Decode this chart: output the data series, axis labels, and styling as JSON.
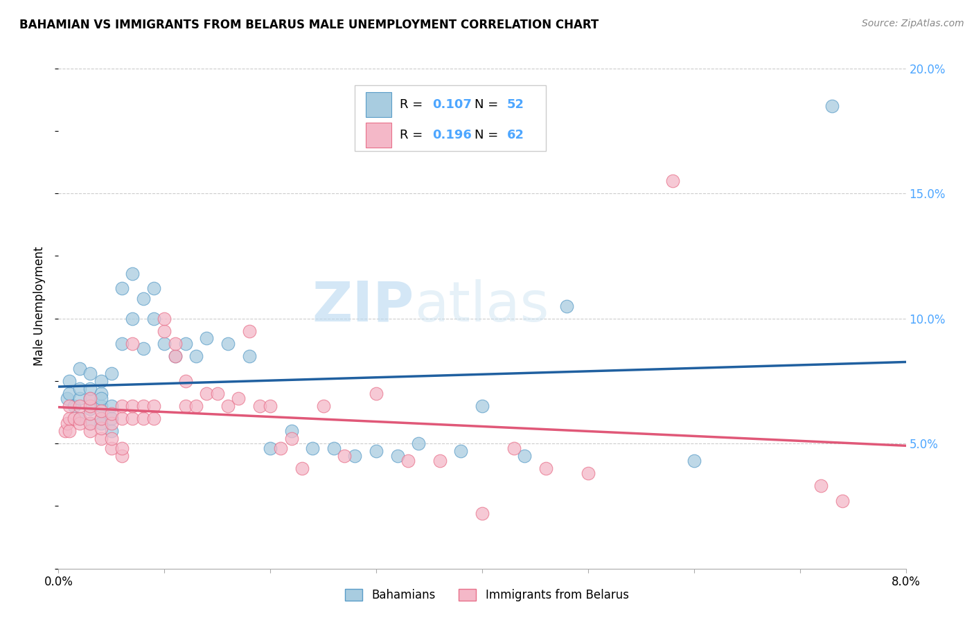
{
  "title": "BAHAMIAN VS IMMIGRANTS FROM BELARUS MALE UNEMPLOYMENT CORRELATION CHART",
  "source": "Source: ZipAtlas.com",
  "ylabel": "Male Unemployment",
  "watermark_zip": "ZIP",
  "watermark_atlas": "atlas",
  "color_blue": "#a8cce0",
  "color_pink": "#f4b8c8",
  "color_blue_edge": "#5a9dc8",
  "color_pink_edge": "#e8708a",
  "color_blue_line": "#2060a0",
  "color_pink_line": "#e05878",
  "xlim": [
    0.0,
    0.08
  ],
  "ylim": [
    0.0,
    0.21
  ],
  "yticks": [
    0.05,
    0.1,
    0.15,
    0.2
  ],
  "ytick_labels": [
    "5.0%",
    "10.0%",
    "15.0%",
    "20.0%"
  ],
  "ytick_color": "#4da6ff",
  "grid_color": "#cccccc",
  "legend_R1": "0.107",
  "legend_N1": "52",
  "legend_R2": "0.196",
  "legend_N2": "62",
  "bahamians_x": [
    0.0008,
    0.001,
    0.001,
    0.0015,
    0.002,
    0.002,
    0.002,
    0.002,
    0.003,
    0.003,
    0.003,
    0.003,
    0.003,
    0.004,
    0.004,
    0.004,
    0.004,
    0.004,
    0.004,
    0.005,
    0.005,
    0.005,
    0.005,
    0.006,
    0.006,
    0.007,
    0.007,
    0.008,
    0.008,
    0.009,
    0.009,
    0.01,
    0.011,
    0.012,
    0.013,
    0.014,
    0.016,
    0.018,
    0.02,
    0.022,
    0.024,
    0.026,
    0.028,
    0.03,
    0.032,
    0.034,
    0.038,
    0.04,
    0.044,
    0.048,
    0.06,
    0.073
  ],
  "bahamians_y": [
    0.068,
    0.07,
    0.075,
    0.065,
    0.068,
    0.072,
    0.08,
    0.06,
    0.064,
    0.068,
    0.072,
    0.078,
    0.058,
    0.06,
    0.065,
    0.07,
    0.075,
    0.058,
    0.068,
    0.06,
    0.065,
    0.055,
    0.078,
    0.09,
    0.112,
    0.1,
    0.118,
    0.088,
    0.108,
    0.1,
    0.112,
    0.09,
    0.085,
    0.09,
    0.085,
    0.092,
    0.09,
    0.085,
    0.048,
    0.055,
    0.048,
    0.048,
    0.045,
    0.047,
    0.045,
    0.05,
    0.047,
    0.065,
    0.045,
    0.105,
    0.043,
    0.185
  ],
  "belarus_x": [
    0.0006,
    0.0008,
    0.001,
    0.001,
    0.001,
    0.0015,
    0.002,
    0.002,
    0.002,
    0.003,
    0.003,
    0.003,
    0.003,
    0.003,
    0.004,
    0.004,
    0.004,
    0.004,
    0.005,
    0.005,
    0.005,
    0.005,
    0.006,
    0.006,
    0.006,
    0.006,
    0.007,
    0.007,
    0.007,
    0.008,
    0.008,
    0.009,
    0.009,
    0.01,
    0.01,
    0.011,
    0.011,
    0.012,
    0.012,
    0.013,
    0.014,
    0.015,
    0.016,
    0.017,
    0.018,
    0.019,
    0.02,
    0.021,
    0.022,
    0.023,
    0.025,
    0.027,
    0.03,
    0.033,
    0.036,
    0.04,
    0.043,
    0.046,
    0.05,
    0.058,
    0.072,
    0.074
  ],
  "belarus_y": [
    0.055,
    0.058,
    0.055,
    0.06,
    0.065,
    0.06,
    0.058,
    0.06,
    0.065,
    0.055,
    0.058,
    0.062,
    0.065,
    0.068,
    0.052,
    0.056,
    0.06,
    0.063,
    0.048,
    0.052,
    0.058,
    0.062,
    0.06,
    0.065,
    0.045,
    0.048,
    0.06,
    0.065,
    0.09,
    0.06,
    0.065,
    0.06,
    0.065,
    0.095,
    0.1,
    0.085,
    0.09,
    0.065,
    0.075,
    0.065,
    0.07,
    0.07,
    0.065,
    0.068,
    0.095,
    0.065,
    0.065,
    0.048,
    0.052,
    0.04,
    0.065,
    0.045,
    0.07,
    0.043,
    0.043,
    0.022,
    0.048,
    0.04,
    0.038,
    0.155,
    0.033,
    0.027
  ]
}
